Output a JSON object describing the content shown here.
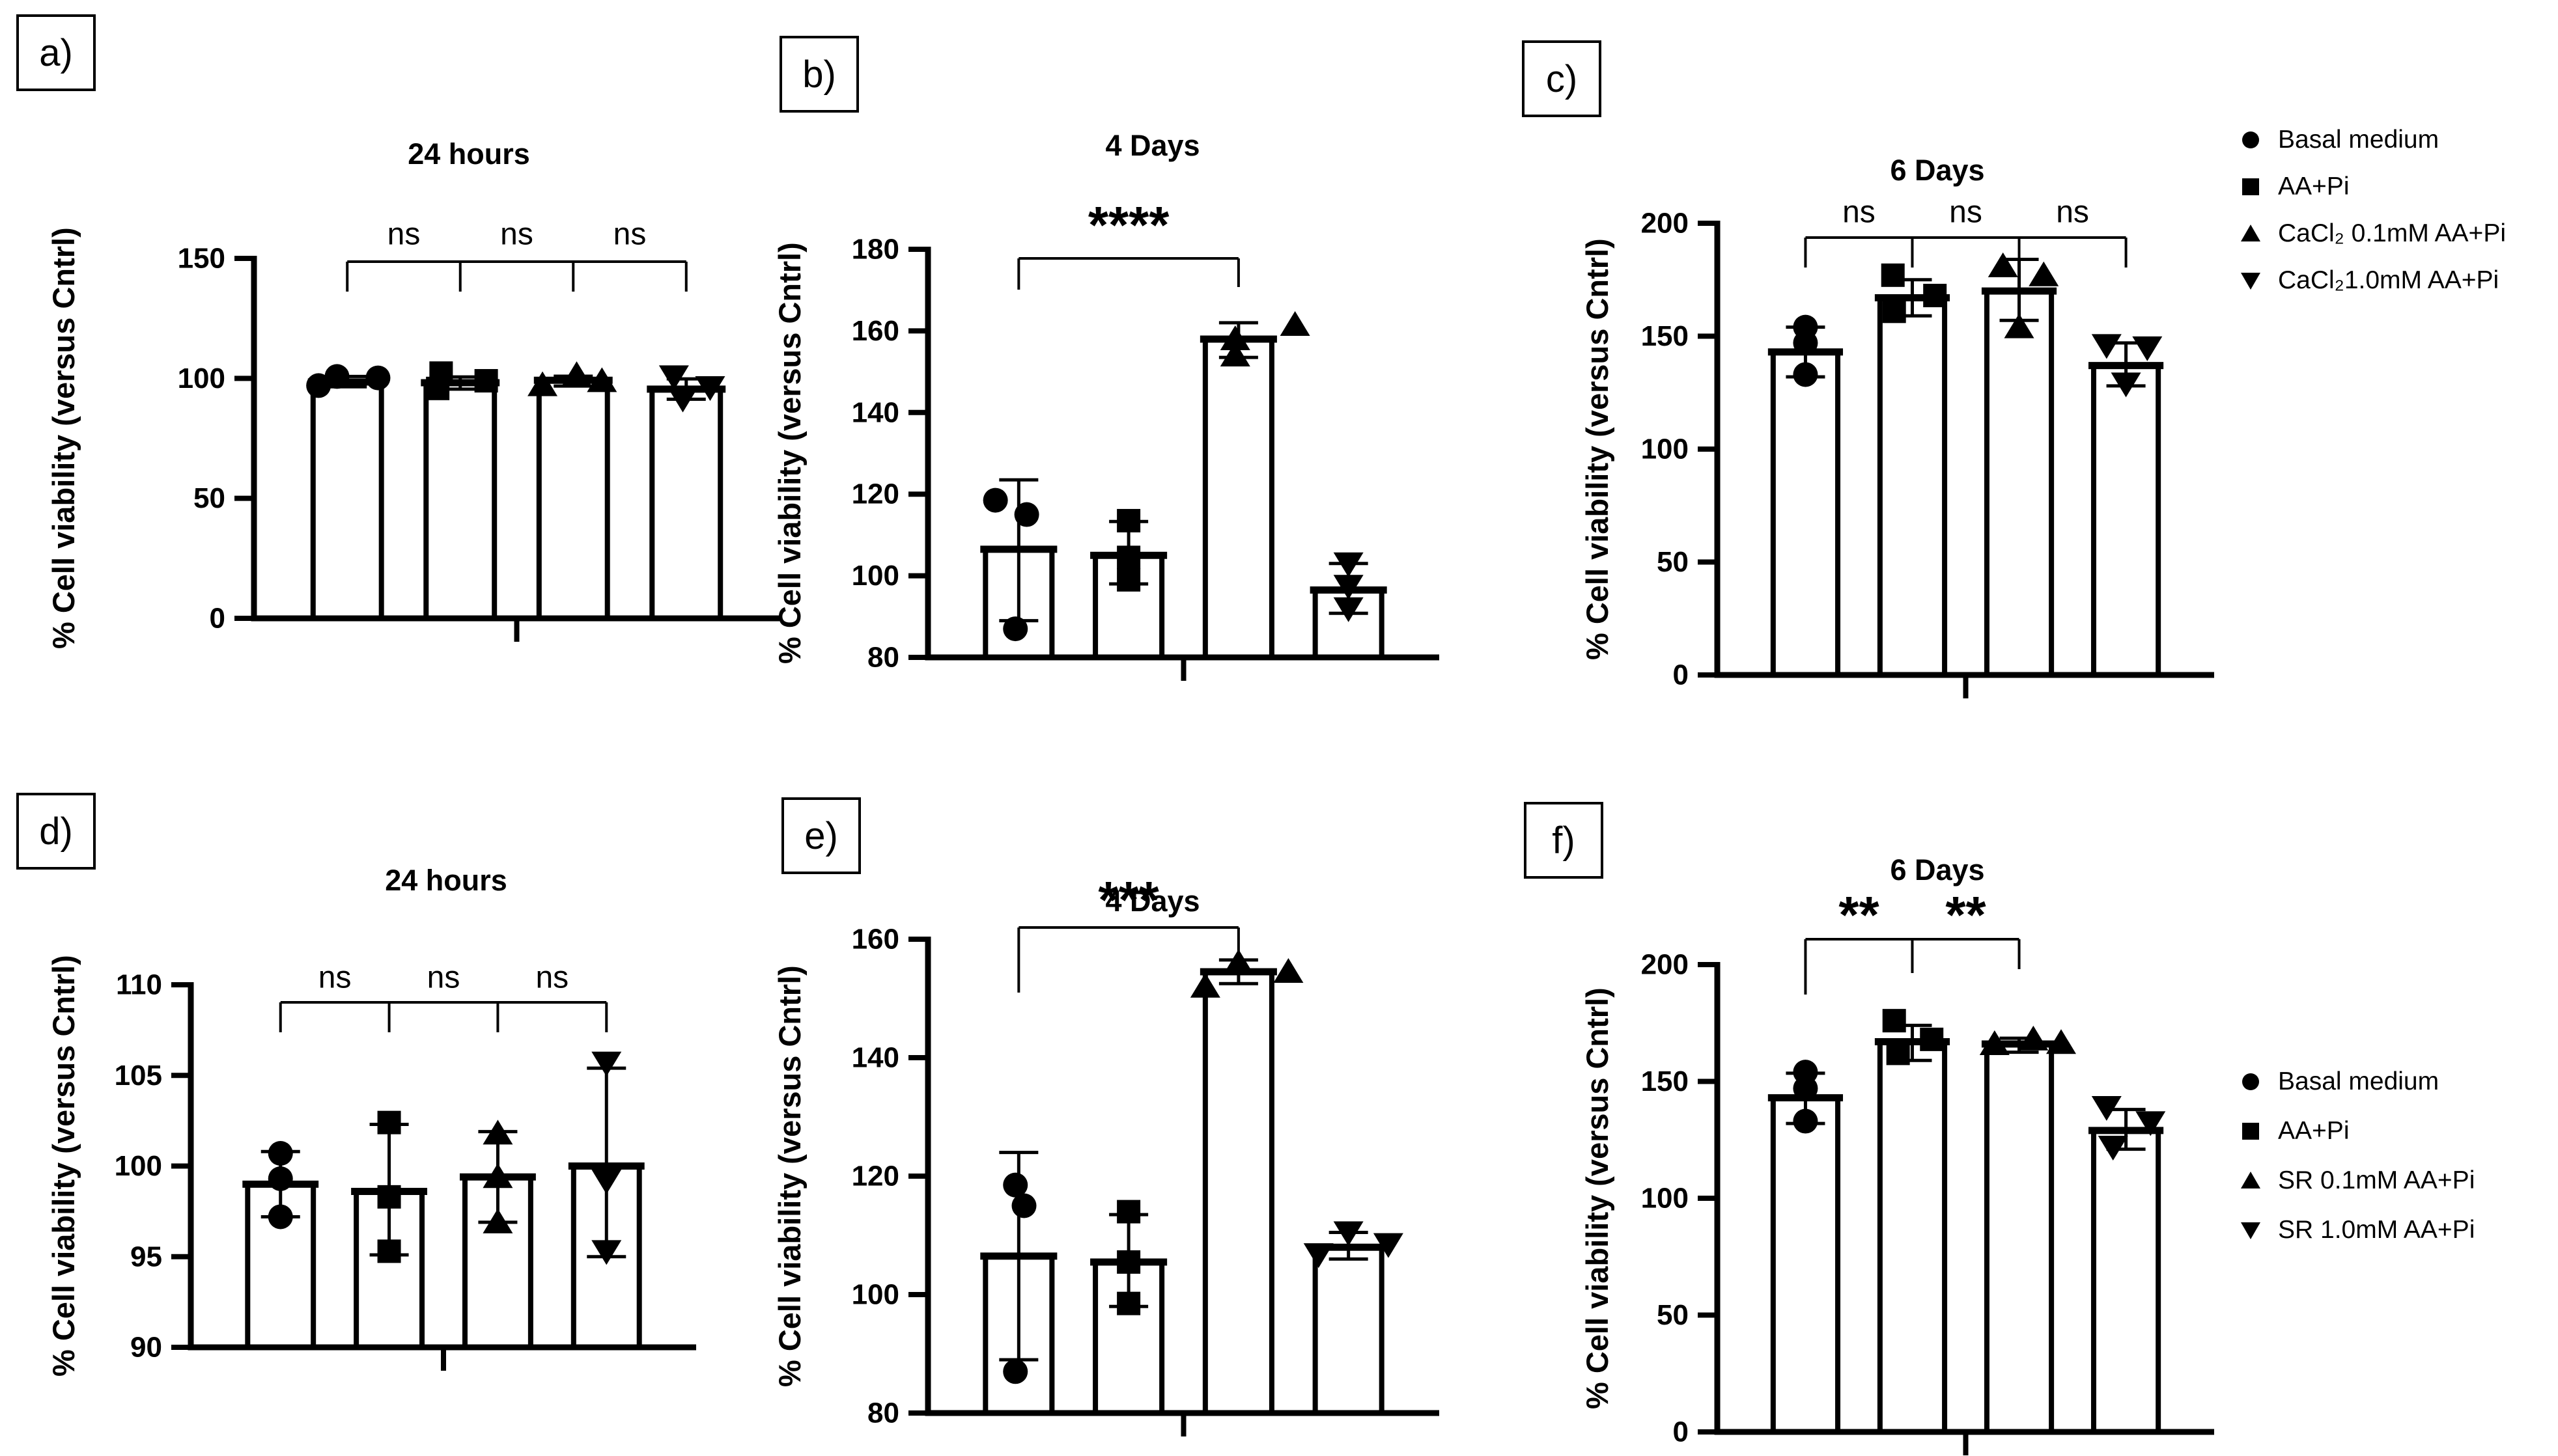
{
  "colors": {
    "ink": "#000000",
    "background": "#ffffff"
  },
  "chart_data": {
    "type": "bar",
    "ylabel_shared": "% Cell viability (versus Cntrl)",
    "panels": [
      {
        "key": "a",
        "letter": "a)",
        "title": "24 hours",
        "ylabel": "% Cell viability (versus Cntrl)",
        "ylim": [
          0,
          150
        ],
        "yticks": [
          0,
          50,
          100,
          150
        ],
        "groups": [
          {
            "name": "Basal medium",
            "marker": "circle",
            "mean": 98.5,
            "err": [
              96.5,
              100.8
            ],
            "points": [
              {
                "v": 100.8,
                "dx": -0.15
              },
              {
                "v": 100.2,
                "dx": 0.45
              },
              {
                "v": 97.0,
                "dx": -0.42
              }
            ]
          },
          {
            "name": "AA+Pi",
            "marker": "square",
            "mean": 98.2,
            "err": [
              95.5,
              100.6
            ],
            "points": [
              {
                "v": 102.2,
                "dx": -0.28
              },
              {
                "v": 99.0,
                "dx": 0.38
              },
              {
                "v": 95.8,
                "dx": -0.33
              }
            ]
          },
          {
            "name": "CaCl₂ 0.1mM AA+Pi",
            "marker": "triangle-up",
            "mean": 99.2,
            "err": [
              96.8,
              100.9
            ],
            "points": [
              {
                "v": 101.4,
                "dx": 0.05
              },
              {
                "v": 98.9,
                "dx": 0.42
              },
              {
                "v": 97.2,
                "dx": -0.45
              }
            ]
          },
          {
            "name": "CaCl₂1.0mM AA+Pi",
            "marker": "triangle-down",
            "mean": 95.5,
            "err": [
              91.3,
              99.8
            ],
            "points": [
              {
                "v": 100.8,
                "dx": -0.18
              },
              {
                "v": 96.3,
                "dx": 0.35
              },
              {
                "v": 91.5,
                "dx": -0.05
              }
            ]
          }
        ],
        "significance": {
          "style": "chain",
          "labels": [
            "ns",
            "ns",
            "ns"
          ]
        }
      },
      {
        "key": "b",
        "letter": "b)",
        "title": "4 Days",
        "ylabel": "% Cell viability (versus Cntrl)",
        "ylim": [
          80,
          180
        ],
        "yticks": [
          80,
          100,
          120,
          140,
          160,
          180
        ],
        "groups": [
          {
            "name": "Basal medium",
            "marker": "circle",
            "mean": 106.5,
            "err": [
              89,
              123.5
            ],
            "points": [
              {
                "v": 118.5,
                "dx": -0.35
              },
              {
                "v": 115,
                "dx": 0.12
              },
              {
                "v": 87,
                "dx": -0.05
              }
            ]
          },
          {
            "name": "AA+Pi",
            "marker": "square",
            "mean": 105,
            "err": [
              98,
              113.3
            ],
            "points": [
              {
                "v": 113.5,
                "dx": 0
              },
              {
                "v": 104.5,
                "dx": 0
              },
              {
                "v": 99,
                "dx": 0
              }
            ]
          },
          {
            "name": "CaCl₂ 0.1mM AA+Pi",
            "marker": "triangle-up",
            "mean": 158,
            "err": [
              153.5,
              162
            ],
            "points": [
              {
                "v": 158,
                "dx": -0.05
              },
              {
                "v": 154,
                "dx": -0.05
              },
              {
                "v": 161.5,
                "dx": 0.85
              }
            ]
          },
          {
            "name": "CaCl₂1.0mM AA+Pi",
            "marker": "triangle-down",
            "mean": 96.5,
            "err": [
              90.8,
              103
            ],
            "points": [
              {
                "v": 103,
                "dx": 0
              },
              {
                "v": 97.5,
                "dx": 0
              },
              {
                "v": 92,
                "dx": 0
              }
            ]
          }
        ],
        "significance": {
          "style": "bracket",
          "from": 0,
          "to": 2,
          "labels": [
            "****"
          ]
        }
      },
      {
        "key": "c",
        "letter": "c)",
        "title": "6 Days",
        "ylabel": "% Cell viability (versus Cntrl)",
        "ylim": [
          0,
          200
        ],
        "yticks": [
          0,
          50,
          100,
          150,
          200
        ],
        "groups": [
          {
            "name": "Basal medium",
            "marker": "circle",
            "mean": 143,
            "err": [
              132,
              154
            ],
            "points": [
              {
                "v": 154,
                "dx": 0
              },
              {
                "v": 147,
                "dx": 0
              },
              {
                "v": 133,
                "dx": 0
              }
            ]
          },
          {
            "name": "AA+Pi",
            "marker": "square",
            "mean": 167,
            "err": [
              159,
              175
            ],
            "points": [
              {
                "v": 177,
                "dx": -0.3
              },
              {
                "v": 168,
                "dx": 0.35
              },
              {
                "v": 161,
                "dx": -0.28
              }
            ]
          },
          {
            "name": "CaCl₂ 0.1mM AA+Pi",
            "marker": "triangle-up",
            "mean": 170,
            "err": [
              157,
              184
            ],
            "points": [
              {
                "v": 181,
                "dx": -0.25
              },
              {
                "v": 177,
                "dx": 0.38
              },
              {
                "v": 154,
                "dx": 0
              }
            ]
          },
          {
            "name": "CaCl₂1.0mM AA+Pi",
            "marker": "triangle-down",
            "mean": 137,
            "err": [
              128,
              147
            ],
            "points": [
              {
                "v": 146,
                "dx": -0.3
              },
              {
                "v": 145,
                "dx": 0.33
              },
              {
                "v": 129,
                "dx": 0
              }
            ]
          }
        ],
        "significance": {
          "style": "chain",
          "labels": [
            "ns",
            "ns",
            "ns"
          ]
        }
      },
      {
        "key": "d",
        "letter": "d)",
        "title": "24 hours",
        "ylabel": "% Cell viability (versus Cntrl)",
        "ylim": [
          90,
          110
        ],
        "yticks": [
          90,
          95,
          100,
          105,
          110
        ],
        "groups": [
          {
            "name": "Basal medium",
            "marker": "circle",
            "mean": 99.0,
            "err": [
              97.2,
              100.8
            ],
            "points": [
              {
                "v": 100.7,
                "dx": 0
              },
              {
                "v": 99.3,
                "dx": 0
              },
              {
                "v": 97.2,
                "dx": 0
              }
            ]
          },
          {
            "name": "AA+Pi",
            "marker": "square",
            "mean": 98.6,
            "err": [
              95.1,
              102.3
            ],
            "points": [
              {
                "v": 102.4,
                "dx": 0
              },
              {
                "v": 98.3,
                "dx": 0
              },
              {
                "v": 95.3,
                "dx": 0
              }
            ]
          },
          {
            "name": "SR 0.1mM AA+Pi",
            "marker": "triangle-up",
            "mean": 99.4,
            "err": [
              96.9,
              101.9
            ],
            "points": [
              {
                "v": 101.8,
                "dx": 0
              },
              {
                "v": 99.4,
                "dx": 0
              },
              {
                "v": 96.9,
                "dx": 0
              }
            ]
          },
          {
            "name": "SR 1.0mM AA+Pi",
            "marker": "triangle-down",
            "mean": 100.0,
            "err": [
              95.0,
              105.4
            ],
            "points": [
              {
                "v": 105.7,
                "dx": 0
              },
              {
                "v": 99.2,
                "dx": 0
              },
              {
                "v": 95.3,
                "dx": 0
              }
            ]
          }
        ],
        "significance": {
          "style": "chain",
          "labels": [
            "ns",
            "ns",
            "ns"
          ]
        }
      },
      {
        "key": "e",
        "letter": "e)",
        "title": "4 Days",
        "ylabel": "% Cell viability (versus Cntrl)",
        "ylim": [
          80,
          160
        ],
        "yticks": [
          80,
          100,
          120,
          140,
          160
        ],
        "groups": [
          {
            "name": "Basal medium",
            "marker": "circle",
            "mean": 106.5,
            "err": [
              89,
              124
            ],
            "points": [
              {
                "v": 118.5,
                "dx": -0.05
              },
              {
                "v": 115,
                "dx": 0.08
              },
              {
                "v": 87,
                "dx": -0.05
              }
            ]
          },
          {
            "name": "AA+Pi",
            "marker": "square",
            "mean": 105.5,
            "err": [
              98,
              113.5
            ],
            "points": [
              {
                "v": 114,
                "dx": 0
              },
              {
                "v": 105.5,
                "dx": 0
              },
              {
                "v": 98.5,
                "dx": 0
              }
            ]
          },
          {
            "name": "SR 0.1mM AA+Pi",
            "marker": "triangle-up",
            "mean": 154.5,
            "err": [
              152.5,
              156.5
            ],
            "points": [
              {
                "v": 156,
                "dx": 0
              },
              {
                "v": 154.5,
                "dx": 0.75
              },
              {
                "v": 152,
                "dx": -0.5
              }
            ]
          },
          {
            "name": "SR 1.0mM AA+Pi",
            "marker": "triangle-down",
            "mean": 108,
            "err": [
              106,
              110.5
            ],
            "points": [
              {
                "v": 110.5,
                "dx": 0
              },
              {
                "v": 108.5,
                "dx": 0.6
              },
              {
                "v": 106.8,
                "dx": -0.45
              }
            ]
          }
        ],
        "significance": {
          "style": "bracket",
          "from": 0,
          "to": 2,
          "labels": [
            "***"
          ]
        }
      },
      {
        "key": "f",
        "letter": "f)",
        "title": "6 Days",
        "ylabel": "% Cell viability (versus Cntrl)",
        "ylim": [
          0,
          200
        ],
        "yticks": [
          0,
          50,
          100,
          150,
          200
        ],
        "groups": [
          {
            "name": "Basal medium",
            "marker": "circle",
            "mean": 143,
            "err": [
              132,
              153.5
            ],
            "points": [
              {
                "v": 154,
                "dx": 0
              },
              {
                "v": 147,
                "dx": 0
              },
              {
                "v": 133,
                "dx": 0
              }
            ]
          },
          {
            "name": "AA+Pi",
            "marker": "square",
            "mean": 167,
            "err": [
              159,
              174
            ],
            "points": [
              {
                "v": 176,
                "dx": -0.28
              },
              {
                "v": 168,
                "dx": 0.3
              },
              {
                "v": 162,
                "dx": -0.22
              }
            ]
          },
          {
            "name": "SR 0.1mM AA+Pi",
            "marker": "triangle-up",
            "mean": 166,
            "err": [
              162.5,
              168.5
            ],
            "points": [
              {
                "v": 166,
                "dx": -0.38
              },
              {
                "v": 168,
                "dx": 0.22
              },
              {
                "v": 166.5,
                "dx": 0.65
              }
            ]
          },
          {
            "name": "SR 1.0mM AA+Pi",
            "marker": "triangle-down",
            "mean": 129,
            "err": [
              121,
              138
            ],
            "points": [
              {
                "v": 139,
                "dx": -0.3
              },
              {
                "v": 132.5,
                "dx": 0.38
              },
              {
                "v": 122,
                "dx": -0.2
              }
            ]
          }
        ],
        "significance": {
          "style": "chain3",
          "from": 0,
          "to": 2,
          "labels": [
            "**",
            "**"
          ]
        }
      }
    ],
    "legends": [
      {
        "id": "top",
        "items": [
          {
            "marker": "circle",
            "label": "Basal medium"
          },
          {
            "marker": "square",
            "label": "AA+Pi"
          },
          {
            "marker": "triangle-up",
            "label": "CaCl₂ 0.1mM AA+Pi"
          },
          {
            "marker": "triangle-down",
            "label": "CaCl₂1.0mM AA+Pi"
          }
        ]
      },
      {
        "id": "bottom",
        "items": [
          {
            "marker": "circle",
            "label": "Basal medium"
          },
          {
            "marker": "square",
            "label": "AA+Pi"
          },
          {
            "marker": "triangle-up",
            "label": "SR 0.1mM AA+Pi"
          },
          {
            "marker": "triangle-down",
            "label": "SR 1.0mM AA+Pi"
          }
        ]
      }
    ]
  }
}
